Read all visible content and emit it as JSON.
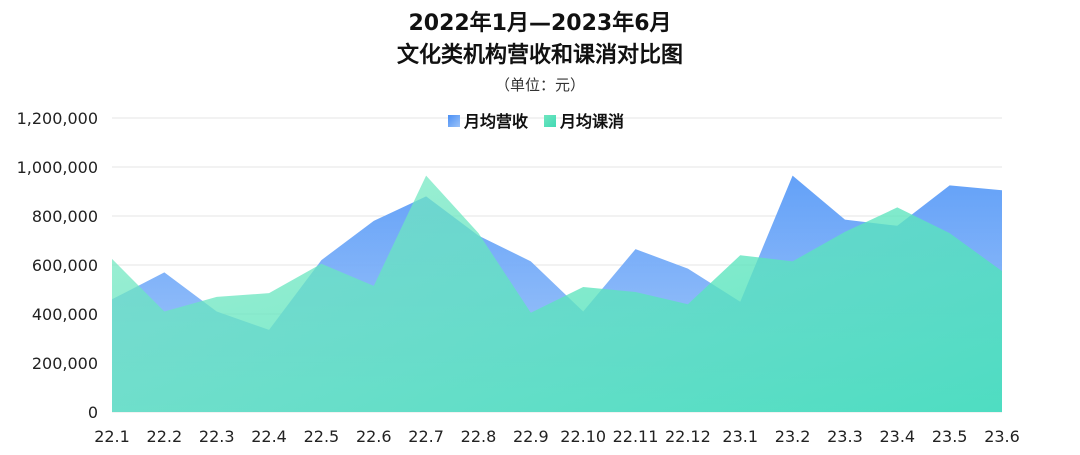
{
  "chart_data": {
    "type": "area",
    "title": "2022年1月—2023年6月",
    "title_line2": "文化类机构营收和课消对比图",
    "subtitle": "（单位：元）",
    "xlabel": "",
    "ylabel": "",
    "categories": [
      "22.1",
      "22.2",
      "22.3",
      "22.4",
      "22.5",
      "22.6",
      "22.7",
      "22.8",
      "22.9",
      "22.10",
      "22.11",
      "22.12",
      "23.1",
      "23.2",
      "23.3",
      "23.4",
      "23.5",
      "23.6"
    ],
    "ylim": [
      0,
      1200000
    ],
    "yticks": [
      0,
      200000,
      400000,
      600000,
      800000,
      1000000,
      1200000
    ],
    "ytick_labels": [
      "0",
      "200,000",
      "400,000",
      "600,000",
      "800,000",
      "1,000,000",
      "1,200,000"
    ],
    "grid": true,
    "legend_position": "top-center",
    "series": [
      {
        "name": "月均营收",
        "values": [
          460000,
          570000,
          410000,
          335000,
          620000,
          780000,
          880000,
          720000,
          615000,
          410000,
          665000,
          585000,
          450000,
          965000,
          785000,
          760000,
          925000,
          905000
        ],
        "color_top": "#5b9cf8",
        "color_bottom": "#a6c9f9"
      },
      {
        "name": "月均课消",
        "values": [
          625000,
          410000,
          470000,
          485000,
          605000,
          515000,
          965000,
          730000,
          405000,
          510000,
          490000,
          440000,
          640000,
          615000,
          735000,
          835000,
          730000,
          575000
        ],
        "color_top": "#5de7b4",
        "color_bottom": "#3ecfc0"
      }
    ]
  }
}
